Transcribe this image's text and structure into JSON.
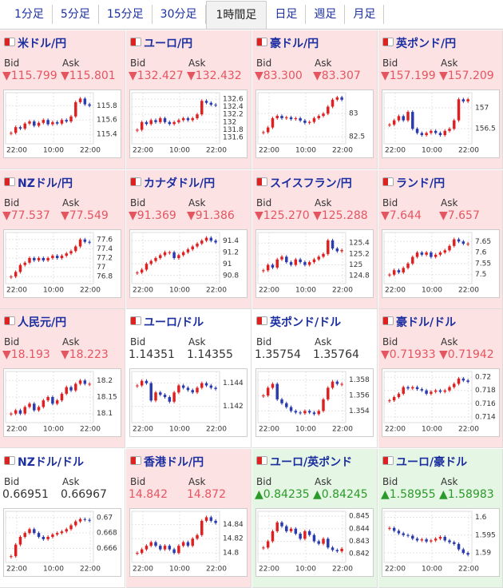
{
  "tabs": {
    "items": [
      "1分足",
      "5分足",
      "15分足",
      "30分足",
      "1時間足",
      "日足",
      "週足",
      "月足"
    ],
    "selected": 4
  },
  "pairs": [
    {
      "title": "米ドル/円",
      "bid_label": "Bid",
      "ask_label": "Ask",
      "bid": "▼115.799",
      "ask": "▼115.801",
      "trend": "down",
      "chart": {
        "ylim": [
          115.3,
          115.95
        ],
        "yticks": [
          115.4,
          115.6,
          115.8
        ],
        "xticks": [
          "22:00",
          "10:00",
          "22:00"
        ],
        "values": [
          115.42,
          115.5,
          115.48,
          115.55,
          115.58,
          115.52,
          115.56,
          115.6,
          115.54,
          115.57,
          115.55,
          115.6,
          115.58,
          115.65,
          115.85,
          115.9,
          115.82,
          115.8
        ]
      }
    },
    {
      "title": "ユーロ/円",
      "bid_label": "Bid",
      "ask_label": "Ask",
      "bid": "▼132.427",
      "ask": "▼132.432",
      "trend": "down",
      "chart": {
        "ylim": [
          131.5,
          132.7
        ],
        "yticks": [
          131.6,
          131.8,
          132,
          132.2,
          132.4,
          132.6
        ],
        "xticks": [
          "22:00",
          "10:00",
          "22:00"
        ],
        "values": [
          131.8,
          132.0,
          131.95,
          132.05,
          132.0,
          132.1,
          132.0,
          131.95,
          132.0,
          132.05,
          132.1,
          132.05,
          132.1,
          132.2,
          132.55,
          132.5,
          132.45,
          132.43
        ]
      }
    },
    {
      "title": "豪ドル/円",
      "bid_label": "Bid",
      "ask_label": "Ask",
      "bid": "▼83.300",
      "ask": "▼83.307",
      "trend": "down",
      "chart": {
        "ylim": [
          82.4,
          83.4
        ],
        "yticks": [
          82.5,
          83
        ],
        "xticks": [
          "22:00",
          "10:00",
          "22:00"
        ],
        "values": [
          82.6,
          82.7,
          82.9,
          82.95,
          82.9,
          82.92,
          82.88,
          82.9,
          82.85,
          82.8,
          82.82,
          82.9,
          82.95,
          83.0,
          83.15,
          83.3,
          83.35,
          83.3
        ]
      }
    },
    {
      "title": "英ポンド/円",
      "bid_label": "Bid",
      "ask_label": "Ask",
      "bid": "▼157.199",
      "ask": "▼157.209",
      "trend": "down",
      "chart": {
        "ylim": [
          156.2,
          157.3
        ],
        "yticks": [
          156.5,
          157
        ],
        "xticks": [
          "22:00",
          "10:00",
          "22:00"
        ],
        "values": [
          156.6,
          156.7,
          156.8,
          156.7,
          156.9,
          156.5,
          156.4,
          156.35,
          156.4,
          156.45,
          156.4,
          156.35,
          156.45,
          156.5,
          156.7,
          157.2,
          157.15,
          157.2
        ]
      }
    },
    {
      "title": "NZドル/円",
      "bid_label": "Bid",
      "ask_label": "Ask",
      "bid": "▼77.537",
      "ask": "▼77.549",
      "trend": "down",
      "chart": {
        "ylim": [
          76.7,
          77.7
        ],
        "yticks": [
          76.8,
          77,
          77.2,
          77.4,
          77.6
        ],
        "xticks": [
          "22:00",
          "10:00",
          "22:00"
        ],
        "values": [
          76.8,
          76.9,
          77.05,
          77.1,
          77.2,
          77.15,
          77.2,
          77.15,
          77.2,
          77.25,
          77.2,
          77.25,
          77.3,
          77.35,
          77.45,
          77.6,
          77.55,
          77.54
        ]
      }
    },
    {
      "title": "カナダドル/円",
      "bid_label": "Bid",
      "ask_label": "Ask",
      "bid": "▼91.369",
      "ask": "▼91.386",
      "trend": "down",
      "chart": {
        "ylim": [
          90.7,
          91.5
        ],
        "yticks": [
          90.8,
          91,
          91.2,
          91.4
        ],
        "xticks": [
          "22:00",
          "10:00",
          "22:00"
        ],
        "values": [
          90.85,
          90.9,
          91.0,
          91.05,
          91.1,
          91.15,
          91.2,
          91.2,
          91.1,
          91.15,
          91.2,
          91.25,
          91.3,
          91.35,
          91.4,
          91.45,
          91.4,
          91.37
        ]
      }
    },
    {
      "title": "スイスフラン/円",
      "bid_label": "Bid",
      "ask_label": "Ask",
      "bid": "▼125.270",
      "ask": "▼125.288",
      "trend": "down",
      "chart": {
        "ylim": [
          124.7,
          125.55
        ],
        "yticks": [
          124.8,
          125,
          125.2,
          125.4
        ],
        "xticks": [
          "22:00",
          "10:00",
          "22:00"
        ],
        "values": [
          124.9,
          125.0,
          124.95,
          125.1,
          125.15,
          125.05,
          125.0,
          125.1,
          125.05,
          125.0,
          125.05,
          125.1,
          125.15,
          125.2,
          125.45,
          125.3,
          125.25,
          125.27
        ]
      }
    },
    {
      "title": "ランド/円",
      "bid_label": "Bid",
      "ask_label": "Ask",
      "bid": "▼7.644",
      "ask": "▼7.657",
      "trend": "down",
      "chart": {
        "ylim": [
          7.47,
          7.68
        ],
        "yticks": [
          7.5,
          7.55,
          7.6,
          7.65
        ],
        "xticks": [
          "22:00",
          "10:00",
          "22:00"
        ],
        "values": [
          7.5,
          7.52,
          7.51,
          7.53,
          7.55,
          7.58,
          7.6,
          7.59,
          7.6,
          7.58,
          7.59,
          7.6,
          7.61,
          7.63,
          7.66,
          7.65,
          7.64,
          7.64
        ]
      }
    },
    {
      "title": "人民元/円",
      "bid_label": "Bid",
      "ask_label": "Ask",
      "bid": "▼18.193",
      "ask": "▼18.223",
      "trend": "down",
      "chart": {
        "ylim": [
          18.08,
          18.22
        ],
        "yticks": [
          18.1,
          18.15,
          18.2
        ],
        "xticks": [
          "22:00",
          "10:00",
          "22:00"
        ],
        "values": [
          18.1,
          18.11,
          18.1,
          18.12,
          18.13,
          18.11,
          18.12,
          18.14,
          18.15,
          18.13,
          18.14,
          18.16,
          18.18,
          18.17,
          18.19,
          18.2,
          18.19,
          18.19
        ]
      }
    },
    {
      "title": "ユーロ/ドル",
      "bid_label": "Bid",
      "ask_label": "Ask",
      "bid": "1.14351",
      "ask": "1.14355",
      "trend": "flat",
      "chart": {
        "ylim": [
          1.1408,
          1.1448
        ],
        "yticks": [
          1.142,
          1.144
        ],
        "xticks": [
          "22:00",
          "10:00",
          "22:00"
        ],
        "values": [
          1.1438,
          1.1442,
          1.144,
          1.1425,
          1.1432,
          1.143,
          1.1428,
          1.1424,
          1.1432,
          1.1438,
          1.1436,
          1.1434,
          1.1432,
          1.1436,
          1.144,
          1.1438,
          1.1436,
          1.1435
        ]
      }
    },
    {
      "title": "英ポンド/ドル",
      "bid_label": "Bid",
      "ask_label": "Ask",
      "bid": "1.35754",
      "ask": "1.35764",
      "trend": "flat",
      "chart": {
        "ylim": [
          1.3528,
          1.3588
        ],
        "yticks": [
          1.354,
          1.356,
          1.358
        ],
        "xticks": [
          "22:00",
          "10:00",
          "22:00"
        ],
        "values": [
          1.356,
          1.357,
          1.3575,
          1.3555,
          1.355,
          1.3545,
          1.354,
          1.3538,
          1.3537,
          1.354,
          1.3538,
          1.3536,
          1.354,
          1.3555,
          1.357,
          1.3578,
          1.3575,
          1.3575
        ]
      }
    },
    {
      "title": "豪ドル/ドル",
      "bid_label": "Bid",
      "ask_label": "Ask",
      "bid": "▼0.71933",
      "ask": "▼0.71942",
      "trend": "down",
      "chart": {
        "ylim": [
          0.7135,
          0.7205
        ],
        "yticks": [
          0.714,
          0.716,
          0.718,
          0.72
        ],
        "xticks": [
          "22:00",
          "10:00",
          "22:00"
        ],
        "values": [
          0.7165,
          0.717,
          0.7175,
          0.7185,
          0.7183,
          0.7185,
          0.7182,
          0.718,
          0.7175,
          0.7178,
          0.718,
          0.7178,
          0.718,
          0.7185,
          0.719,
          0.7198,
          0.7195,
          0.7193
        ]
      }
    },
    {
      "title": "NZドル/ドル",
      "bid_label": "Bid",
      "ask_label": "Ask",
      "bid": "0.66951",
      "ask": "0.66967",
      "trend": "flat",
      "chart": {
        "ylim": [
          0.6645,
          0.6705
        ],
        "yticks": [
          0.666,
          0.668,
          0.67
        ],
        "xticks": [
          "22:00",
          "10:00",
          "22:00"
        ],
        "values": [
          0.665,
          0.6665,
          0.6675,
          0.668,
          0.6685,
          0.668,
          0.6675,
          0.6672,
          0.6675,
          0.6678,
          0.668,
          0.6682,
          0.6685,
          0.669,
          0.6695,
          0.6698,
          0.6697,
          0.6696
        ]
      }
    },
    {
      "title": "香港ドル/円",
      "bid_label": "Bid",
      "ask_label": "Ask",
      "bid": "14.842",
      "ask": "14.872",
      "trend": "down",
      "chart": {
        "ylim": [
          14.79,
          14.855
        ],
        "yticks": [
          14.8,
          14.82,
          14.84
        ],
        "xticks": [
          "22:00",
          "10:00",
          "22:00"
        ],
        "values": [
          14.8,
          14.805,
          14.81,
          14.815,
          14.81,
          14.805,
          14.81,
          14.805,
          14.8,
          14.81,
          14.815,
          14.81,
          14.82,
          14.825,
          14.845,
          14.85,
          14.845,
          14.842
        ]
      }
    },
    {
      "title": "ユーロ/英ポンド",
      "bid_label": "Bid",
      "ask_label": "Ask",
      "bid": "▲0.84235",
      "ask": "▲0.84245",
      "trend": "up",
      "chart": {
        "ylim": [
          0.8415,
          0.8452
        ],
        "yticks": [
          0.842,
          0.843,
          0.844,
          0.845
        ],
        "xticks": [
          "22:00",
          "10:00",
          "22:00"
        ],
        "values": [
          0.8425,
          0.843,
          0.8438,
          0.8445,
          0.8442,
          0.8438,
          0.844,
          0.8436,
          0.8432,
          0.8438,
          0.8435,
          0.843,
          0.8428,
          0.8432,
          0.8425,
          0.8423,
          0.8422,
          0.8424
        ]
      }
    },
    {
      "title": "ユーロ/豪ドル",
      "bid_label": "Bid",
      "ask_label": "Ask",
      "bid": "▲1.58955",
      "ask": "▲1.58983",
      "trend": "up",
      "chart": {
        "ylim": [
          1.588,
          1.601
        ],
        "yticks": [
          1.59,
          1.595,
          1.6
        ],
        "xticks": [
          "22:00",
          "10:00",
          "22:00"
        ],
        "values": [
          1.597,
          1.5962,
          1.5955,
          1.595,
          1.5948,
          1.594,
          1.5935,
          1.5938,
          1.5932,
          1.5935,
          1.594,
          1.5945,
          1.5935,
          1.593,
          1.5925,
          1.591,
          1.59,
          1.5895
        ]
      }
    }
  ]
}
